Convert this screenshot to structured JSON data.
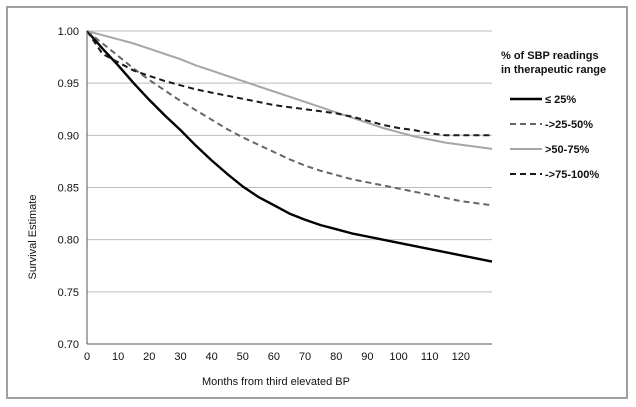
{
  "chart_data": {
    "type": "line",
    "title": "",
    "xlabel": "Months from third elevated BP",
    "ylabel": "Survival Estimate",
    "xlim": [
      0,
      130
    ],
    "ylim": [
      0.7,
      1.0
    ],
    "x_ticks": [
      0,
      10,
      20,
      30,
      40,
      50,
      60,
      70,
      80,
      90,
      100,
      110,
      120
    ],
    "y_ticks": [
      "0.70",
      "0.75",
      "0.80",
      "0.85",
      "0.90",
      "0.95",
      "1.00"
    ],
    "grid": "horizontal",
    "legend": {
      "position": "right",
      "title_lines": [
        "% of SBP readings",
        "in therapeutic range"
      ]
    },
    "series": [
      {
        "name": "≤ 25%",
        "color": "#000000",
        "style": "solid",
        "x": [
          0,
          5,
          10,
          15,
          20,
          25,
          30,
          35,
          40,
          45,
          50,
          55,
          60,
          65,
          70,
          75,
          80,
          85,
          90,
          95,
          100,
          105,
          110,
          115,
          120,
          125,
          130
        ],
        "y": [
          1.0,
          0.983,
          0.967,
          0.95,
          0.934,
          0.919,
          0.905,
          0.89,
          0.876,
          0.863,
          0.851,
          0.841,
          0.833,
          0.825,
          0.819,
          0.814,
          0.81,
          0.806,
          0.803,
          0.8,
          0.797,
          0.794,
          0.791,
          0.788,
          0.785,
          0.782,
          0.779
        ]
      },
      {
        "name": "->25-50%",
        "color": "#666666",
        "style": "dashed",
        "x": [
          0,
          5,
          10,
          15,
          20,
          25,
          30,
          35,
          40,
          45,
          50,
          55,
          60,
          65,
          70,
          75,
          80,
          85,
          90,
          95,
          100,
          105,
          110,
          115,
          120,
          125,
          130
        ],
        "y": [
          1.0,
          0.988,
          0.976,
          0.964,
          0.953,
          0.943,
          0.933,
          0.924,
          0.915,
          0.906,
          0.898,
          0.891,
          0.884,
          0.877,
          0.871,
          0.866,
          0.862,
          0.858,
          0.855,
          0.852,
          0.849,
          0.846,
          0.843,
          0.84,
          0.837,
          0.835,
          0.833
        ]
      },
      {
        "name": ">50-75%",
        "color": "#a6a6a6",
        "style": "solid",
        "x": [
          0,
          5,
          10,
          15,
          20,
          25,
          30,
          35,
          40,
          45,
          50,
          55,
          60,
          65,
          70,
          75,
          80,
          85,
          90,
          95,
          100,
          105,
          110,
          115,
          120,
          125,
          130
        ],
        "y": [
          1.0,
          0.996,
          0.992,
          0.988,
          0.983,
          0.978,
          0.973,
          0.967,
          0.962,
          0.957,
          0.952,
          0.947,
          0.942,
          0.937,
          0.932,
          0.927,
          0.922,
          0.917,
          0.912,
          0.907,
          0.903,
          0.899,
          0.896,
          0.893,
          0.891,
          0.889,
          0.887
        ]
      },
      {
        "name": "->75-100%",
        "color": "#1a1a1a",
        "style": "dashed",
        "x": [
          0,
          5,
          10,
          15,
          20,
          25,
          30,
          35,
          40,
          45,
          50,
          55,
          60,
          65,
          70,
          75,
          80,
          85,
          90,
          95,
          100,
          105,
          110,
          115,
          120,
          125,
          130
        ],
        "y": [
          1.0,
          0.978,
          0.97,
          0.962,
          0.957,
          0.952,
          0.948,
          0.944,
          0.941,
          0.938,
          0.935,
          0.932,
          0.929,
          0.927,
          0.925,
          0.923,
          0.921,
          0.918,
          0.914,
          0.91,
          0.907,
          0.905,
          0.902,
          0.9,
          0.9,
          0.9,
          0.9
        ]
      }
    ]
  }
}
